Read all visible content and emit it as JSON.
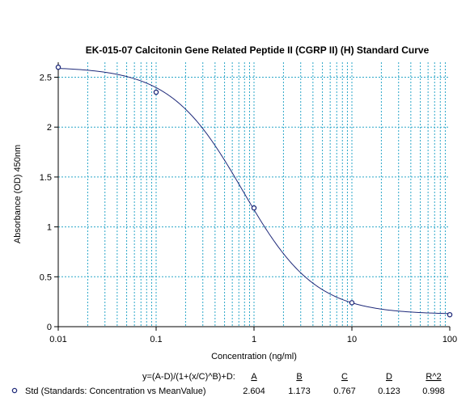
{
  "chart_data": {
    "type": "scatter",
    "title": "EK-015-07 Calcitonin Gene Related Peptide II (CGRP II) (H) Standard Curve",
    "xlabel": "Concentration (ng/ml)",
    "ylabel": "Absorbance (OD) 450nm",
    "xscale": "log",
    "xlim": [
      0.01,
      100
    ],
    "ylim": [
      0,
      2.65
    ],
    "grid": true,
    "x_tick_labels": [
      "0.01",
      "0.1",
      "1",
      "10",
      "100"
    ],
    "y_tick_labels": [
      "0",
      "0.5",
      "1",
      "1.5",
      "2",
      "2.5"
    ],
    "series": [
      {
        "name": "Std (Standards: Concentration vs MeanValue)",
        "x": [
          0.01,
          0.1,
          1,
          10,
          100
        ],
        "y": [
          2.6,
          2.35,
          1.19,
          0.24,
          0.12
        ]
      }
    ],
    "fit": {
      "equation": "y=(A-D)/(1+(x/C)^B)+D:",
      "headers": [
        "A",
        "B",
        "C",
        "D",
        "R^2"
      ],
      "values": [
        "2.604",
        "1.173",
        "0.767",
        "0.123",
        "0.998"
      ],
      "A": 2.604,
      "B": 1.173,
      "C": 0.767,
      "D": 0.123
    },
    "colors": {
      "curve": "#1f2a7a",
      "points": "#1f2a7a",
      "grid": "#2ca7c9",
      "axis": "#000000"
    }
  }
}
